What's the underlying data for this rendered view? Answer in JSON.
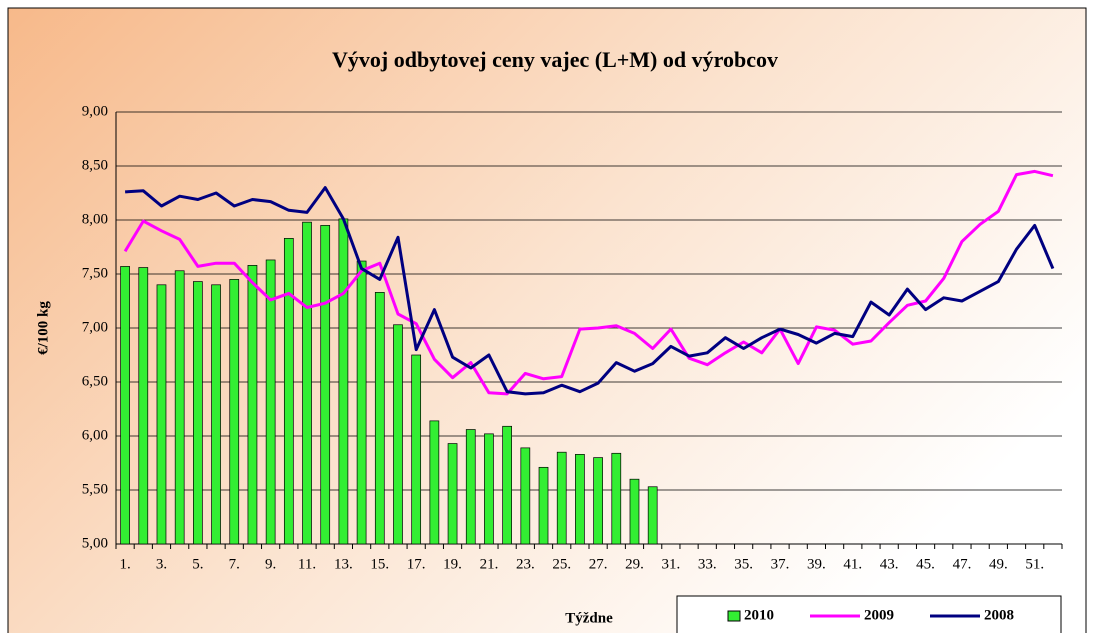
{
  "chart_data": {
    "type": "bar",
    "title": "Vývoj odbytovej ceny vajec (L+M) od výrobcov",
    "y_label": "€/100 kg",
    "x_label": "Týždne",
    "categories": [
      "1.",
      null,
      "3.",
      null,
      "5.",
      null,
      "7.",
      null,
      "9.",
      null,
      "11.",
      null,
      "13.",
      null,
      "15.",
      null,
      "17.",
      null,
      "19.",
      null,
      "21.",
      null,
      "23.",
      null,
      "25.",
      null,
      "27.",
      null,
      "29.",
      null,
      "31.",
      null,
      "33.",
      null,
      "35.",
      null,
      "37.",
      null,
      "39.",
      null,
      "41.",
      null,
      "43.",
      null,
      "45.",
      null,
      "47.",
      null,
      "49.",
      null,
      "51.",
      null
    ],
    "ylim": [
      5,
      9
    ],
    "yticks": [
      {
        "value": 5,
        "label": "5,00"
      },
      {
        "value": 5.5,
        "label": "5,50"
      },
      {
        "value": 6,
        "label": "6,00"
      },
      {
        "value": 6.5,
        "label": "6,50"
      },
      {
        "value": 7,
        "label": "7,00"
      },
      {
        "value": 7.5,
        "label": "7,50"
      },
      {
        "value": 8,
        "label": "8,00"
      },
      {
        "value": 8.5,
        "label": "8,50"
      },
      {
        "value": 9,
        "label": "9,00"
      }
    ],
    "grid": true,
    "legend": "bottom-right",
    "series": [
      {
        "name": "2010",
        "type": "bar",
        "color": "#33ee33",
        "values": [
          7.57,
          7.56,
          7.4,
          7.53,
          7.43,
          7.4,
          7.45,
          7.58,
          7.63,
          7.83,
          7.98,
          7.95,
          8.01,
          7.62,
          7.33,
          7.03,
          6.75,
          6.14,
          5.93,
          6.06,
          6.02,
          6.09,
          5.89,
          5.71,
          5.85,
          5.83,
          5.8,
          5.84,
          5.6,
          5.53,
          null,
          null,
          null,
          null,
          null,
          null,
          null,
          null,
          null,
          null,
          null,
          null,
          null,
          null,
          null,
          null,
          null,
          null,
          null,
          null,
          null,
          null
        ]
      },
      {
        "name": "2009",
        "type": "line",
        "color": "#ff00ff",
        "values": [
          7.71,
          7.99,
          7.9,
          7.82,
          7.57,
          7.6,
          7.6,
          7.42,
          7.26,
          7.32,
          7.19,
          7.23,
          7.32,
          7.53,
          7.6,
          7.13,
          7.04,
          6.71,
          6.54,
          6.68,
          6.4,
          6.39,
          6.58,
          6.53,
          6.55,
          6.99,
          7.0,
          7.02,
          6.95,
          6.81,
          6.99,
          6.72,
          6.66,
          6.77,
          6.87,
          6.77,
          6.99,
          6.67,
          7.01,
          6.98,
          6.85,
          6.88,
          7.05,
          7.21,
          7.25,
          7.46,
          7.8,
          7.96,
          8.08,
          8.42,
          8.45,
          8.41
        ]
      },
      {
        "name": "2008",
        "type": "line",
        "color": "#000080",
        "values": [
          8.26,
          8.27,
          8.13,
          8.22,
          8.19,
          8.25,
          8.13,
          8.19,
          8.17,
          8.09,
          8.07,
          8.3,
          8.01,
          7.55,
          7.45,
          7.84,
          6.8,
          7.17,
          6.73,
          6.63,
          6.75,
          6.41,
          6.39,
          6.4,
          6.47,
          6.41,
          6.49,
          6.68,
          6.6,
          6.67,
          6.83,
          6.74,
          6.77,
          6.91,
          6.81,
          6.91,
          6.99,
          6.94,
          6.86,
          6.95,
          6.92,
          7.24,
          7.12,
          7.36,
          7.17,
          7.28,
          7.25,
          7.34,
          7.43,
          7.73,
          7.95,
          7.55
        ]
      }
    ]
  }
}
